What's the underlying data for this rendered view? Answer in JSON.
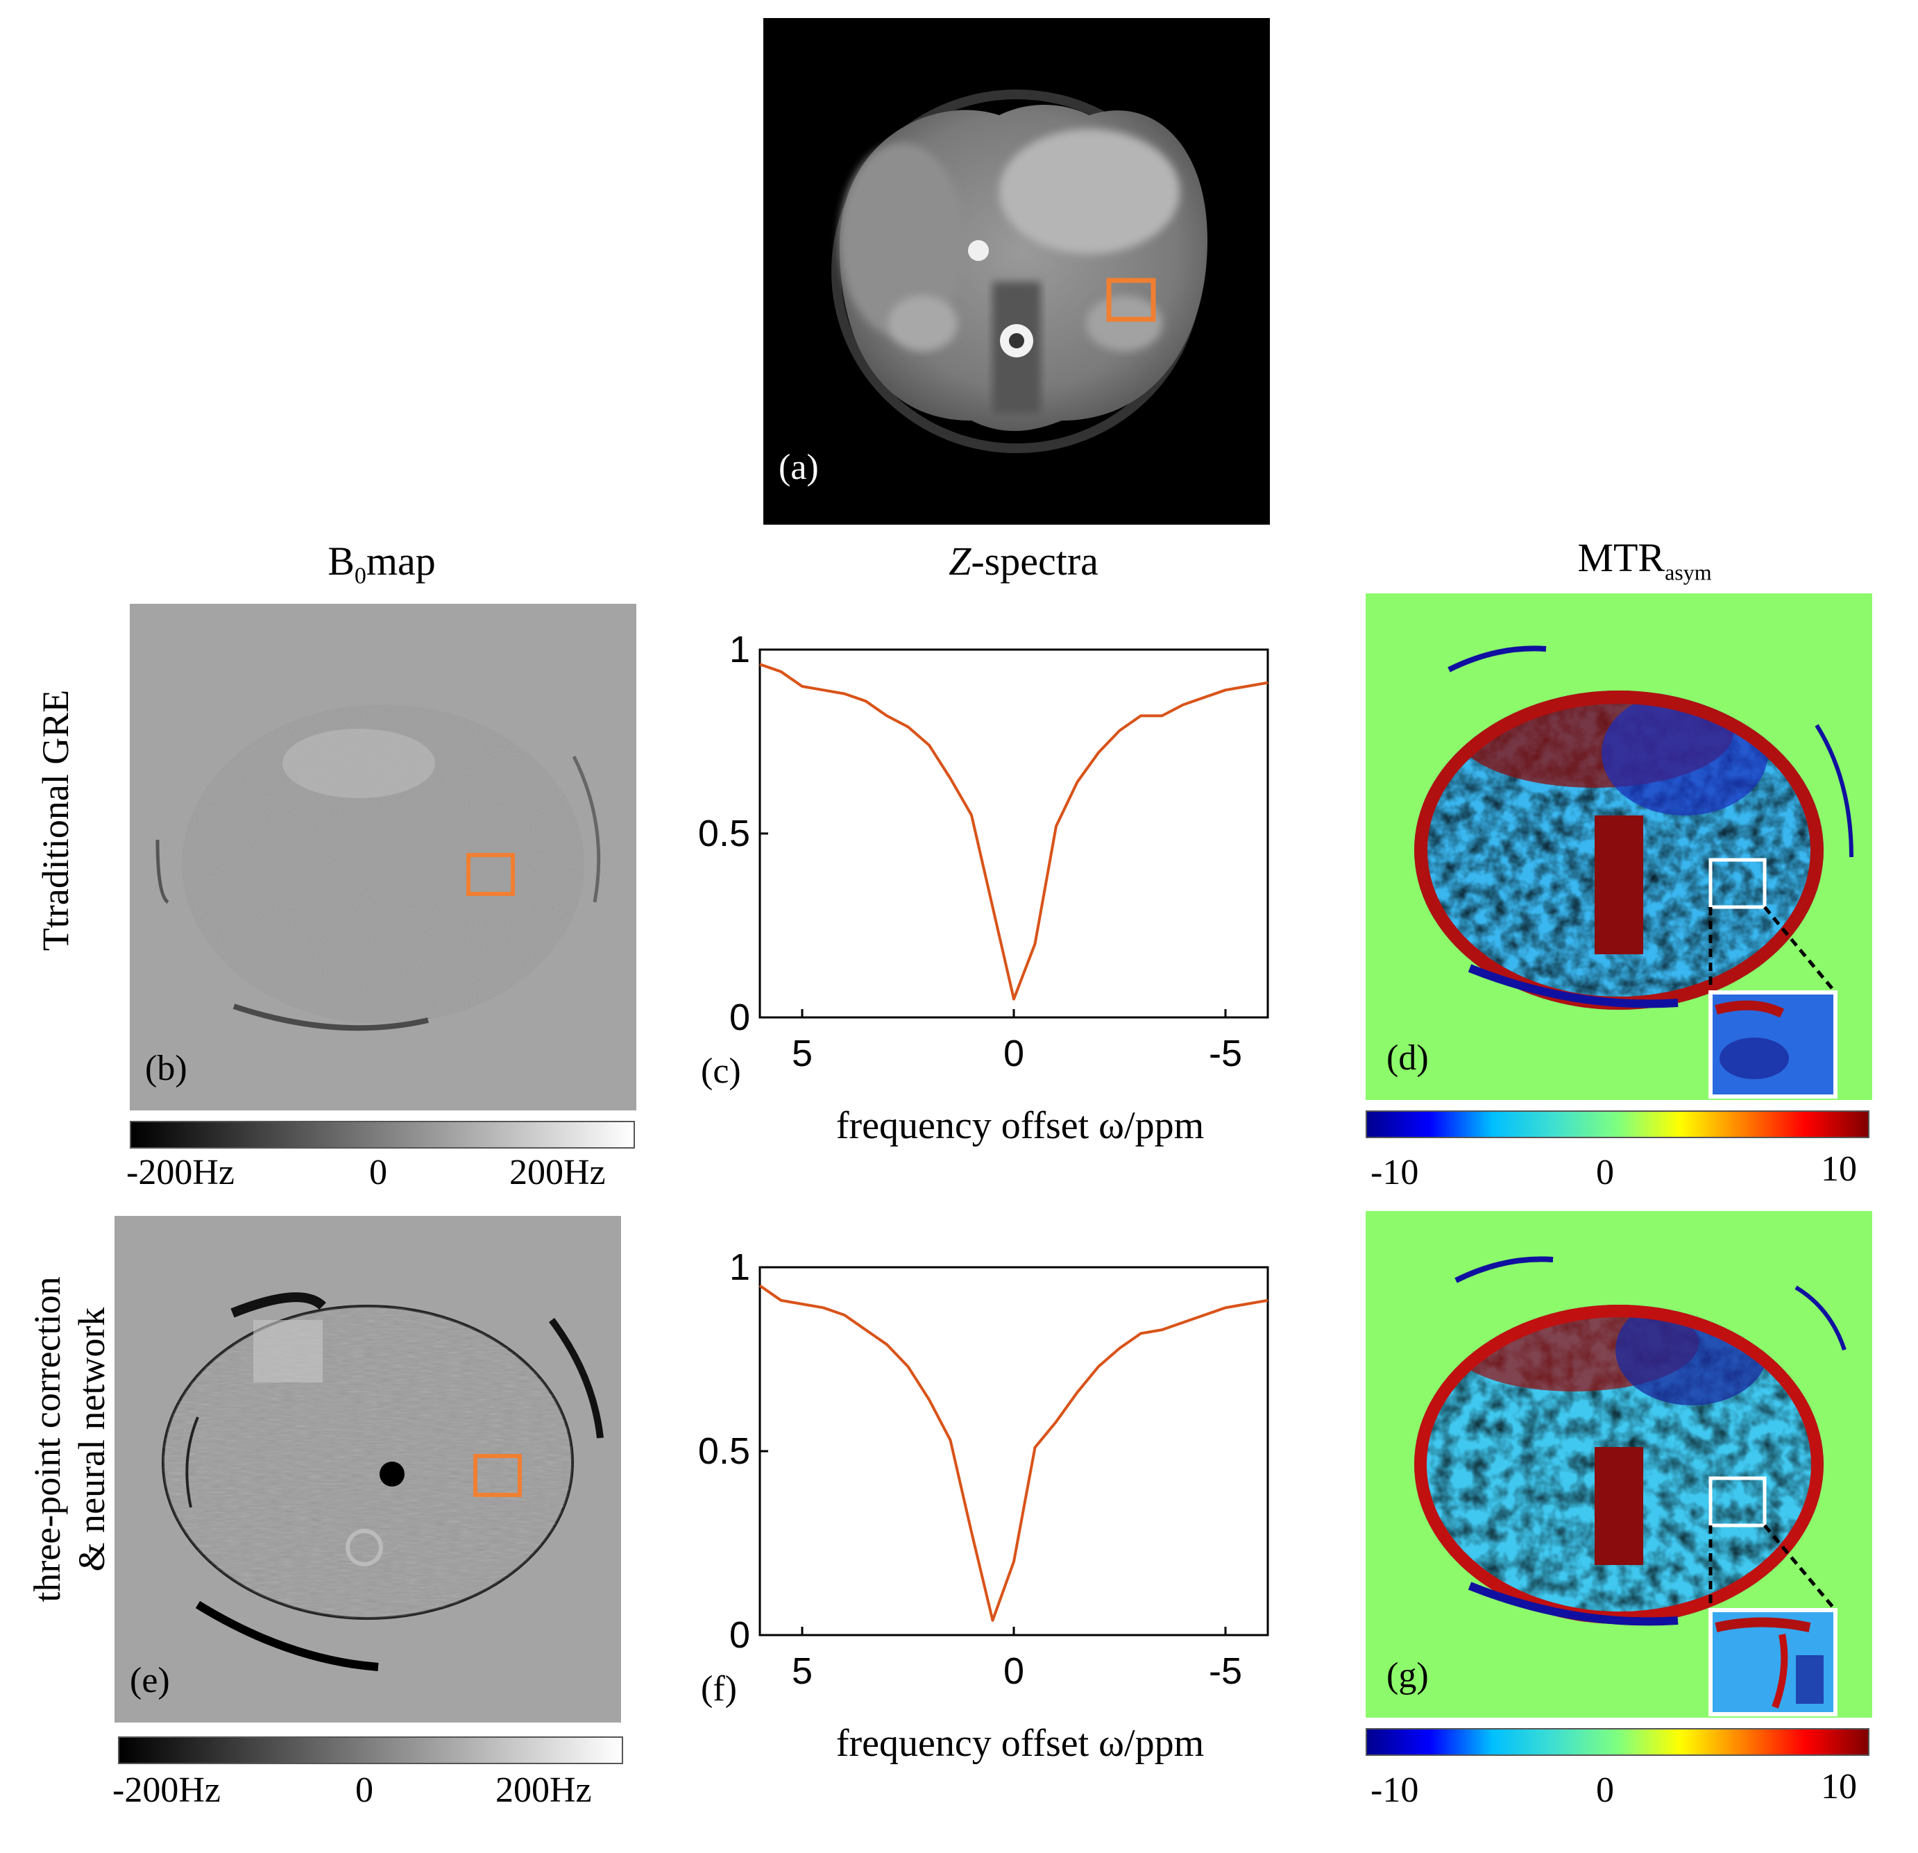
{
  "panels": {
    "a": {
      "letter": "(a)"
    },
    "b": {
      "letter": "(b)"
    },
    "c": {
      "letter": "(c)"
    },
    "d": {
      "letter": "(d)"
    },
    "e": {
      "letter": "(e)"
    },
    "f": {
      "letter": "(f)"
    },
    "g": {
      "letter": "(g)"
    }
  },
  "column_titles": {
    "b0_main": "B",
    "b0_sub": "0",
    "b0_rest": "map",
    "zspectra_z": "Z",
    "zspectra_rest": "-spectra",
    "mtr_main": "MTR",
    "mtr_sub": "asym"
  },
  "row_labels": {
    "row1": "Ttraditional GRE",
    "row2_line1": "three-point correction",
    "row2_line2": "& neural network"
  },
  "b0_colorbar": {
    "labels": [
      "-200Hz",
      "0",
      "200Hz"
    ]
  },
  "mtr_colorbar": {
    "labels": [
      "-10",
      "0",
      "10"
    ]
  },
  "colors": {
    "roi_box": "#f07f32",
    "curve": "#d95319",
    "mtr_background": "#8cfa6a",
    "b0_background": "#a4a4a4"
  },
  "chart_data": [
    {
      "type": "line",
      "panel": "(c)",
      "xlabel": "frequency offset ω/ppm",
      "ylabel": "",
      "xlim": [
        6,
        -6
      ],
      "ylim": [
        0,
        1
      ],
      "xticks": [
        "5",
        "0",
        "-5"
      ],
      "yticks": [
        "0",
        "0.5",
        "1"
      ],
      "grid": false,
      "series": [
        {
          "x": [
            6,
            5.5,
            5,
            4.5,
            4,
            3.5,
            3,
            2.5,
            2,
            1.5,
            1,
            0.5,
            0,
            -0.5,
            -1,
            -1.5,
            -2,
            -2.5,
            -3,
            -3.5,
            -4,
            -4.5,
            -5,
            -5.5,
            -6
          ],
          "values": [
            0.96,
            0.94,
            0.9,
            0.89,
            0.88,
            0.86,
            0.82,
            0.79,
            0.74,
            0.65,
            0.55,
            0.3,
            0.05,
            0.2,
            0.52,
            0.64,
            0.72,
            0.78,
            0.82,
            0.82,
            0.85,
            0.87,
            0.89,
            0.9,
            0.91
          ]
        }
      ]
    },
    {
      "type": "line",
      "panel": "(f)",
      "xlabel": "frequency offset ω/ppm",
      "ylabel": "",
      "xlim": [
        6,
        -6
      ],
      "ylim": [
        0,
        1
      ],
      "xticks": [
        "5",
        "0",
        "-5"
      ],
      "yticks": [
        "0",
        "0.5",
        "1"
      ],
      "grid": false,
      "series": [
        {
          "x": [
            6,
            5.5,
            5,
            4.5,
            4,
            3.5,
            3,
            2.5,
            2,
            1.5,
            1,
            0.5,
            0,
            -0.5,
            -1,
            -1.5,
            -2,
            -2.5,
            -3,
            -3.5,
            -4,
            -4.5,
            -5,
            -5.5,
            -6
          ],
          "values": [
            0.95,
            0.91,
            0.9,
            0.89,
            0.87,
            0.83,
            0.79,
            0.73,
            0.64,
            0.53,
            0.28,
            0.04,
            0.2,
            0.51,
            0.58,
            0.66,
            0.73,
            0.78,
            0.82,
            0.83,
            0.85,
            0.87,
            0.89,
            0.9,
            0.91
          ]
        }
      ]
    }
  ]
}
